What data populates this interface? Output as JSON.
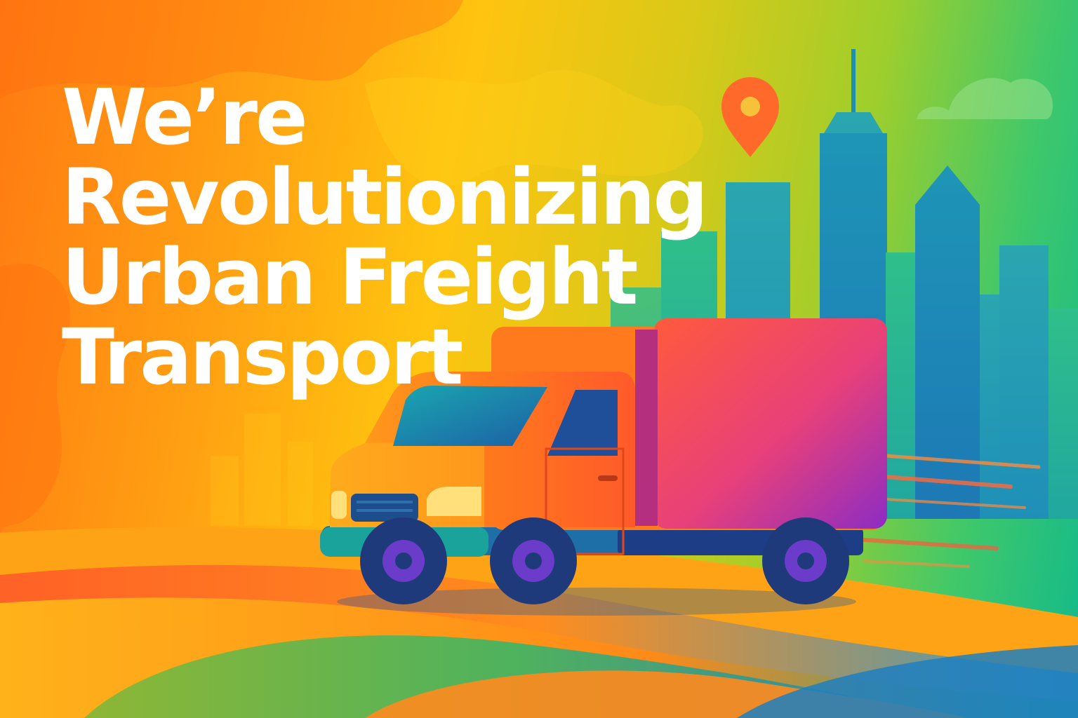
{
  "headline": {
    "line1": "We’re",
    "line2": "Revolutionizing",
    "line3": "Urban Freight",
    "line4": "Transport"
  },
  "icons": [
    "location-pin-icon",
    "cloud-icon"
  ],
  "colors": {
    "text": "#ffffff",
    "orange": "#ff7a12",
    "yellow": "#ffc40f",
    "lime": "#9fce2c",
    "green": "#3fc86b",
    "teal": "#12b98c",
    "blue": "#1f6fb8",
    "pin": "#ff6a2b",
    "truck_cab": "#ff6a1f",
    "truck_box_top": "#ff5a3c",
    "truck_box_bottom": "#9b2cc0",
    "wheel": "#1f3a7a",
    "hub": "#6b3cc9"
  }
}
